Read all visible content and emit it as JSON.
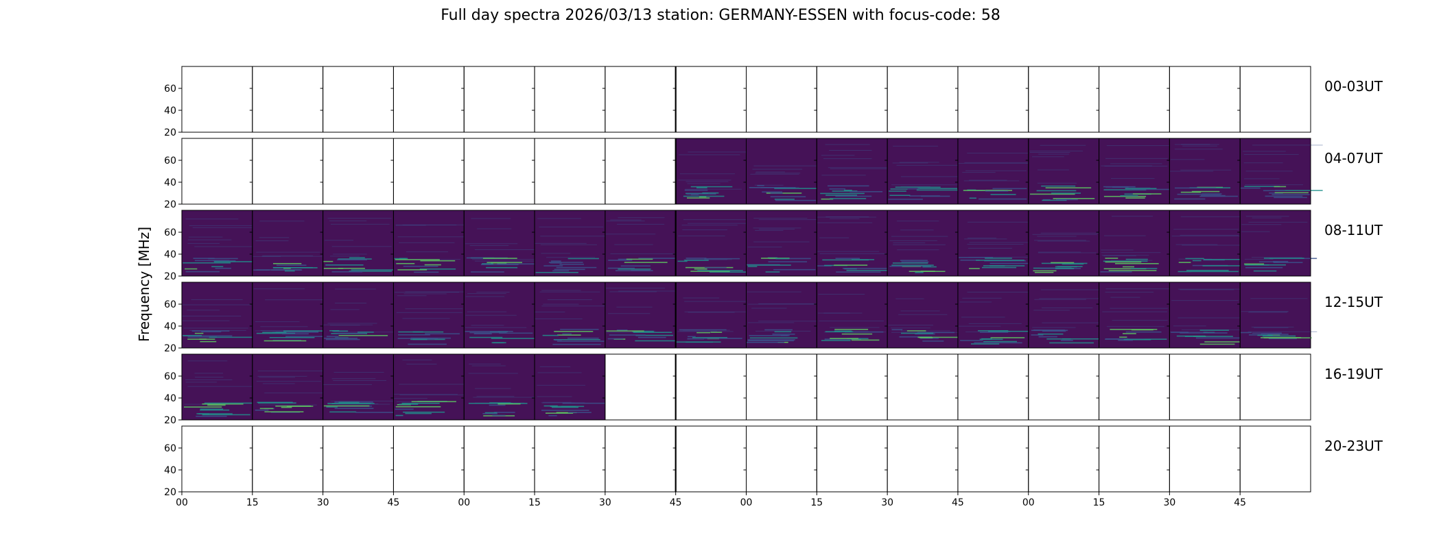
{
  "chart_data": {
    "type": "heatmap",
    "title": "Full day spectra 2026/03/13 station: GERMANY-ESSEN with focus-code: 58",
    "ylabel": "Frequency [MHz]",
    "xlabel": "",
    "ylim": [
      20,
      80
    ],
    "y_ticks": [
      "20",
      "40",
      "60"
    ],
    "x_tick_labels": [
      "00",
      "15",
      "30",
      "45",
      "00",
      "15",
      "30",
      "45",
      "00",
      "15",
      "30",
      "45",
      "00",
      "15",
      "30",
      "45"
    ],
    "rows": [
      {
        "label": "00-03UT",
        "filled_segments": []
      },
      {
        "label": "04-07UT",
        "filled_segments": [
          7,
          8,
          9,
          10,
          11,
          12,
          13,
          14,
          15
        ]
      },
      {
        "label": "08-11UT",
        "filled_segments": [
          0,
          1,
          2,
          3,
          4,
          5,
          6,
          7,
          8,
          9,
          10,
          11,
          12,
          13,
          14,
          15
        ]
      },
      {
        "label": "12-15UT",
        "filled_segments": [
          0,
          1,
          2,
          3,
          4,
          5,
          6,
          7,
          8,
          9,
          10,
          11,
          12,
          13,
          14,
          15
        ]
      },
      {
        "label": "16-19UT",
        "filled_segments": [
          0,
          1,
          2,
          3,
          4,
          5
        ]
      },
      {
        "label": "20-23UT",
        "filled_segments": []
      }
    ],
    "colormap": [
      "#440154",
      "#3b528b",
      "#21918c",
      "#5ec962",
      "#fde725"
    ],
    "background_color": "#451257"
  }
}
